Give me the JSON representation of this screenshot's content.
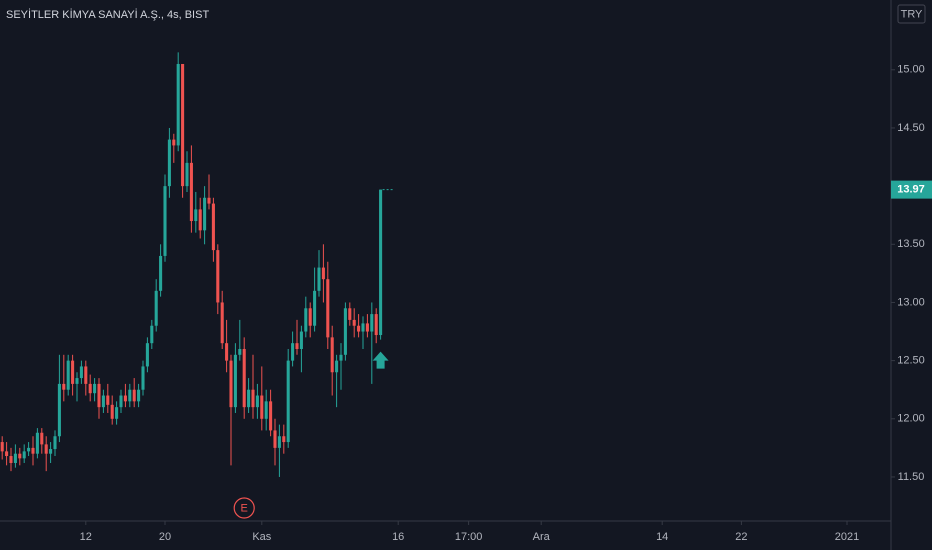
{
  "chart_data": {
    "type": "candlestick",
    "title": "SEYİTLER KİMYA SANAYİ A.Ş., 4s, BIST",
    "currency": "TRY",
    "up_color": "#26a69a",
    "down_color": "#ef5350",
    "x": [
      0,
      1,
      2,
      3,
      4,
      5,
      6,
      7,
      8,
      9,
      10,
      11,
      12,
      13,
      14,
      15,
      16,
      17,
      18,
      19,
      20,
      21,
      22,
      23,
      24,
      25,
      26,
      27,
      28,
      29,
      30,
      31,
      32,
      33,
      34,
      35,
      36,
      37,
      38,
      39,
      40,
      41,
      42,
      43,
      44,
      45,
      46,
      47,
      48,
      49,
      50,
      51,
      52,
      53,
      54,
      55,
      56,
      57,
      58,
      59,
      60,
      61,
      62,
      63,
      64,
      65,
      66,
      67,
      68,
      69,
      70,
      71,
      72,
      73,
      74,
      75,
      76,
      77,
      78,
      79,
      80,
      81,
      82,
      83,
      84,
      85,
      86
    ],
    "open": [
      11.8,
      11.72,
      11.68,
      11.62,
      11.7,
      11.66,
      11.72,
      11.75,
      11.7,
      11.88,
      11.78,
      11.7,
      11.74,
      11.85,
      12.3,
      12.25,
      12.5,
      12.3,
      12.35,
      12.45,
      12.3,
      12.22,
      12.3,
      12.1,
      12.2,
      12.12,
      12.0,
      12.1,
      12.2,
      12.15,
      12.25,
      12.15,
      12.25,
      12.45,
      12.65,
      12.8,
      13.1,
      13.4,
      14.0,
      14.4,
      14.35,
      15.05,
      14.0,
      14.2,
      13.7,
      13.8,
      13.62,
      13.9,
      13.85,
      13.45,
      13.0,
      12.65,
      12.5,
      12.1,
      12.55,
      12.6,
      12.1,
      12.25,
      12.1,
      12.2,
      12.0,
      12.15,
      11.9,
      11.75,
      11.85,
      11.8,
      12.5,
      12.65,
      12.6,
      12.75,
      12.95,
      12.8,
      13.1,
      13.3,
      13.2,
      12.7,
      12.4,
      12.5,
      12.55,
      12.95,
      12.85,
      12.8,
      12.75,
      12.82,
      12.75,
      12.9,
      12.72
    ],
    "high": [
      11.85,
      11.8,
      11.75,
      11.78,
      11.75,
      11.78,
      11.8,
      11.85,
      11.92,
      11.92,
      11.85,
      11.8,
      11.9,
      12.55,
      12.55,
      12.55,
      12.55,
      12.4,
      12.5,
      12.5,
      12.38,
      12.35,
      12.35,
      12.25,
      12.3,
      12.2,
      12.15,
      12.25,
      12.3,
      12.3,
      12.35,
      12.3,
      12.5,
      12.7,
      12.85,
      13.2,
      13.5,
      14.1,
      14.5,
      14.45,
      15.15,
      15.05,
      14.3,
      14.35,
      13.95,
      13.9,
      14.0,
      14.1,
      13.9,
      13.5,
      13.1,
      12.85,
      12.55,
      12.65,
      12.85,
      12.7,
      12.35,
      12.55,
      12.3,
      12.45,
      12.25,
      12.25,
      12.0,
      11.95,
      11.95,
      12.6,
      12.75,
      12.85,
      12.8,
      13.05,
      13.0,
      13.3,
      13.45,
      13.5,
      13.35,
      12.8,
      12.55,
      12.65,
      13.0,
      13.0,
      12.95,
      12.9,
      12.88,
      12.9,
      13.0,
      12.95,
      13.97
    ],
    "low": [
      11.65,
      11.6,
      11.55,
      11.58,
      11.6,
      11.62,
      11.68,
      11.6,
      11.66,
      11.7,
      11.55,
      11.62,
      11.68,
      11.8,
      12.15,
      12.2,
      12.2,
      12.15,
      12.3,
      12.2,
      12.15,
      12.15,
      12.0,
      12.05,
      12.05,
      11.95,
      11.95,
      12.05,
      12.1,
      12.1,
      12.1,
      12.1,
      12.2,
      12.4,
      12.6,
      12.75,
      13.05,
      13.35,
      13.9,
      14.2,
      14.3,
      13.9,
      13.95,
      13.6,
      13.6,
      13.55,
      13.5,
      13.8,
      13.35,
      12.9,
      12.6,
      12.4,
      11.6,
      12.05,
      12.5,
      12.0,
      12.05,
      12.0,
      12.0,
      11.9,
      11.9,
      11.85,
      11.6,
      11.5,
      11.7,
      11.75,
      12.45,
      12.55,
      12.4,
      12.7,
      12.7,
      12.75,
      13.05,
      13.0,
      12.6,
      12.2,
      12.1,
      12.25,
      12.5,
      12.8,
      12.7,
      12.7,
      12.6,
      12.7,
      12.3,
      12.65,
      12.68
    ],
    "close": [
      11.72,
      11.68,
      11.62,
      11.7,
      11.66,
      11.72,
      11.75,
      11.7,
      11.88,
      11.78,
      11.7,
      11.74,
      11.85,
      12.3,
      12.25,
      12.5,
      12.3,
      12.35,
      12.45,
      12.3,
      12.22,
      12.3,
      12.1,
      12.2,
      12.12,
      12.0,
      12.1,
      12.2,
      12.15,
      12.25,
      12.15,
      12.25,
      12.45,
      12.65,
      12.8,
      13.1,
      13.4,
      14.0,
      14.4,
      14.35,
      15.05,
      14.0,
      14.2,
      13.7,
      13.8,
      13.62,
      13.9,
      13.85,
      13.45,
      13.0,
      12.65,
      12.5,
      12.1,
      12.55,
      12.6,
      12.1,
      12.25,
      12.1,
      12.2,
      12.0,
      12.15,
      11.9,
      11.75,
      11.85,
      11.8,
      12.5,
      12.65,
      12.6,
      12.75,
      12.95,
      12.8,
      13.1,
      13.3,
      13.2,
      12.7,
      12.4,
      12.5,
      12.55,
      12.95,
      12.85,
      12.8,
      12.75,
      12.82,
      12.75,
      12.9,
      12.72,
      13.97
    ],
    "last_price": 13.97,
    "xlim": [
      -0.5,
      202
    ],
    "ylim": [
      11.13,
      15.6
    ],
    "xticks": [
      {
        "value": 19,
        "label": "12"
      },
      {
        "value": 37,
        "label": "20"
      },
      {
        "value": 59,
        "label": "Kas"
      },
      {
        "value": 90,
        "label": "16"
      },
      {
        "value": 106,
        "label": "17:00"
      },
      {
        "value": 122.5,
        "label": "Ara"
      },
      {
        "value": 150,
        "label": "14"
      },
      {
        "value": 168,
        "label": "22"
      },
      {
        "value": 192,
        "label": "2021"
      }
    ],
    "yticks": [
      {
        "value": 11.5,
        "label": "11.50"
      },
      {
        "value": 12,
        "label": "12.00"
      },
      {
        "value": 12.5,
        "label": "12.50"
      },
      {
        "value": 13,
        "label": "13.00"
      },
      {
        "value": 13.5,
        "label": "13.50"
      },
      {
        "value": 14,
        "label": "14.00"
      },
      {
        "value": 14.5,
        "label": "14.50"
      },
      {
        "value": 15,
        "label": "15.00"
      }
    ],
    "annotations": [
      {
        "x": 55,
        "label": "E"
      }
    ]
  }
}
